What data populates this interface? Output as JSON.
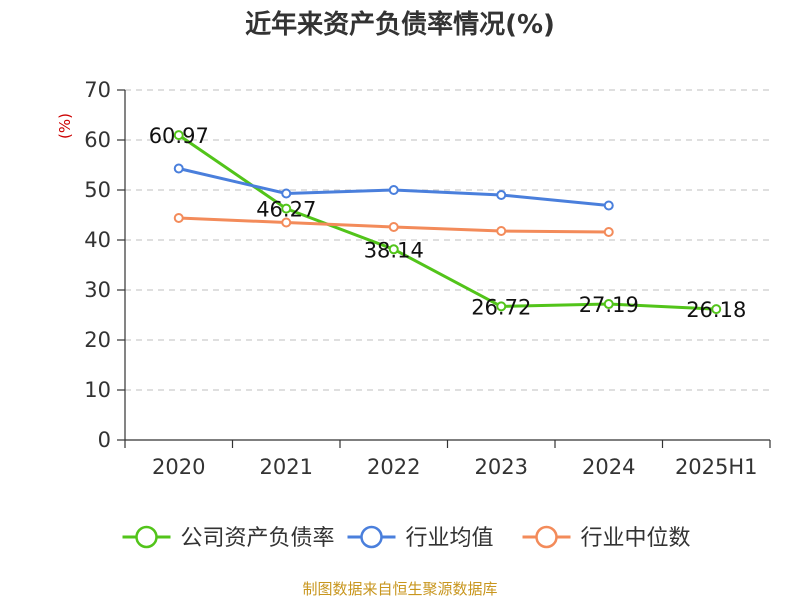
{
  "chart_data": {
    "type": "line",
    "title": "近年来资产负债率情况(%)",
    "ylabel": "(%)",
    "xlabel": "",
    "ylim": [
      0,
      70
    ],
    "yticks": [
      0,
      10,
      20,
      30,
      40,
      50,
      60,
      70
    ],
    "categories": [
      "2020",
      "2021",
      "2022",
      "2023",
      "2024",
      "2025H1"
    ],
    "grid": true,
    "legend_position": "bottom",
    "series": [
      {
        "name": "公司资产负债率",
        "color": "#52c41a",
        "values": [
          60.97,
          46.27,
          38.14,
          26.72,
          27.19,
          26.18
        ],
        "labels": [
          "60.97",
          "46.27",
          "38.14",
          "26.72",
          "27.19",
          "26.18"
        ]
      },
      {
        "name": "行业均值",
        "color": "#4a7fdc",
        "values": [
          54.3,
          49.3,
          50.0,
          49.0,
          46.9,
          null
        ]
      },
      {
        "name": "行业中位数",
        "color": "#f38b5a",
        "values": [
          44.4,
          43.5,
          42.6,
          41.8,
          41.6,
          null
        ]
      }
    ]
  },
  "source": "制图数据来自恒生聚源数据库",
  "colors": {
    "title": "#333333",
    "ylabel": "#cc0000",
    "source": "#c8961e",
    "grid": "#cccccc",
    "axis": "#333333"
  }
}
